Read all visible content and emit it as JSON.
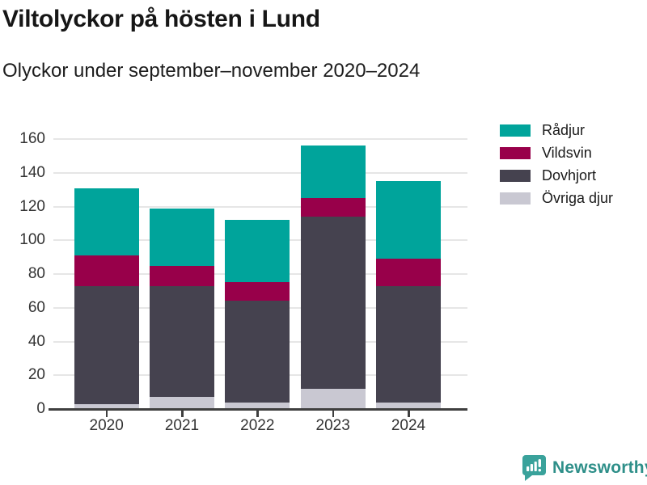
{
  "header": {
    "title": "Viltolyckor på hösten i Lund",
    "subtitle": "Olyckor under september–november 2020–2024"
  },
  "chart_data": {
    "type": "bar",
    "stacked": true,
    "title": "Viltolyckor på hösten i Lund",
    "subtitle": "Olyckor under september–november 2020–2024",
    "categories": [
      "2020",
      "2021",
      "2022",
      "2023",
      "2024"
    ],
    "series": [
      {
        "name": "Rådjur",
        "color": "#00A49B",
        "values": [
          40,
          34,
          37,
          31,
          46
        ]
      },
      {
        "name": "Vildsvin",
        "color": "#98004A",
        "values": [
          18,
          12,
          11,
          11,
          16
        ]
      },
      {
        "name": "Dovhjort",
        "color": "#45424F",
        "values": [
          70,
          66,
          60,
          102,
          69
        ]
      },
      {
        "name": "Övriga djur",
        "color": "#C9C8D2",
        "values": [
          3,
          7,
          4,
          12,
          4
        ]
      }
    ],
    "stack_order_bottom_to_top": [
      "Övriga djur",
      "Dovhjort",
      "Vildsvin",
      "Rådjur"
    ],
    "totals": [
      131,
      119,
      112,
      156,
      135
    ],
    "xlabel": "",
    "ylabel": "",
    "ylim": [
      0,
      160
    ],
    "yticks": [
      0,
      20,
      40,
      60,
      80,
      100,
      120,
      140,
      160
    ],
    "grid": "horizontal-only",
    "legend_position": "top-right"
  },
  "footer": {
    "brand": "Newsworthy",
    "logo_icon": "bar-chart-speech-bubble-icon"
  },
  "colors": {
    "background": "#FFFFFF",
    "title_text": "#161616",
    "axis_text": "#333333",
    "axis_line": "#3F3F3F",
    "gridline": "#E6E6E6",
    "brand_teal": "#2E8F89",
    "logo_teal": "#3AA29B"
  }
}
